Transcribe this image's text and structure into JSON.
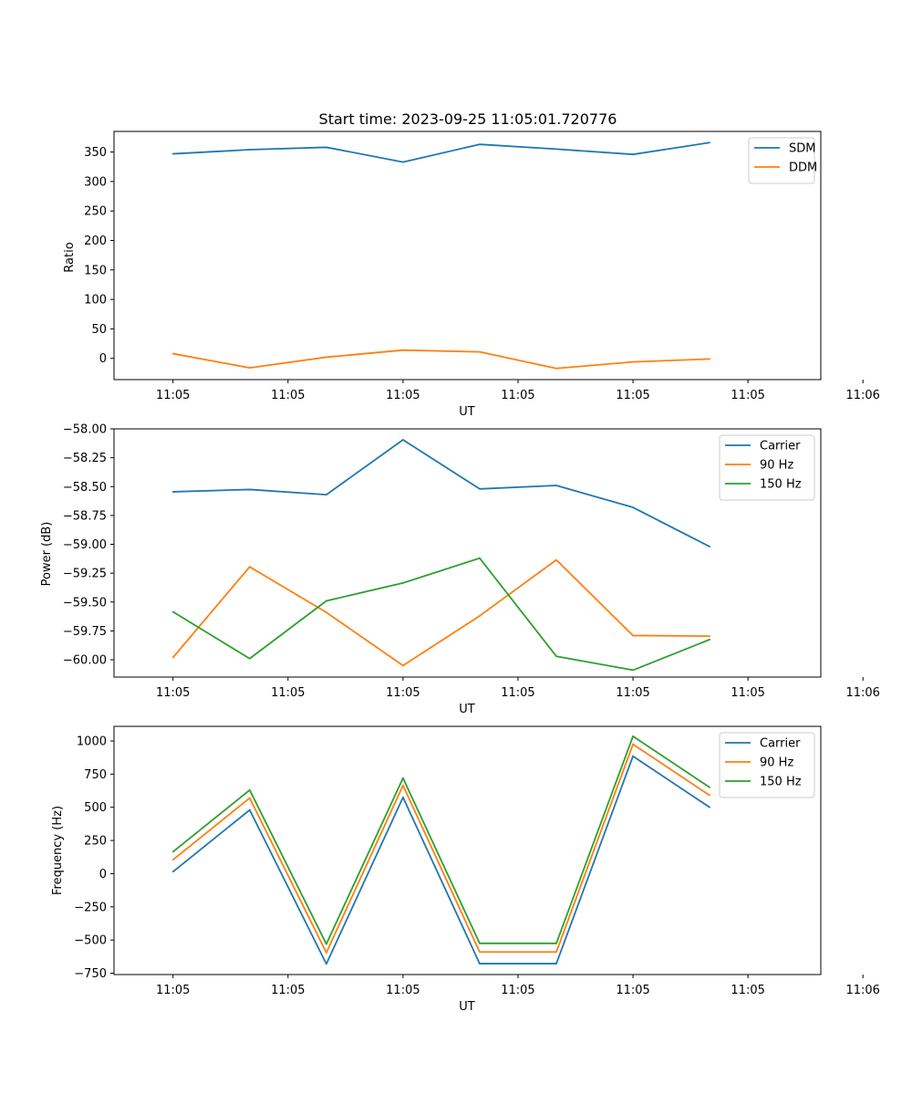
{
  "figure_title": "Start time: 2023-09-25 11:05:01.720776",
  "chart_data": [
    {
      "type": "line",
      "title": "Start time: 2023-09-25 11:05:01.720776",
      "xlabel": "UT",
      "ylabel": "Ratio",
      "xlim": [
        -0.77,
        8.45
      ],
      "ylim": [
        -36,
        385
      ],
      "x_ticks": [
        {
          "value": 0,
          "label": "11:05"
        },
        {
          "value": 1.5,
          "label": "11:05"
        },
        {
          "value": 3,
          "label": "11:05"
        },
        {
          "value": 4.5,
          "label": "11:05"
        },
        {
          "value": 6,
          "label": "11:05"
        },
        {
          "value": 7.5,
          "label": "11:05"
        },
        {
          "value": 9,
          "label": "11:06"
        }
      ],
      "y_ticks": [
        0,
        50,
        100,
        150,
        200,
        250,
        300,
        350
      ],
      "y_tick_labels": [
        "0",
        "50",
        "100",
        "150",
        "200",
        "250",
        "300",
        "350"
      ],
      "legend_position": "top-right",
      "x": [
        0,
        1,
        2,
        3,
        4,
        5,
        6,
        7
      ],
      "series": [
        {
          "name": "SDM",
          "color": "#1f77b4",
          "values": [
            347,
            354,
            358,
            333,
            363,
            355,
            346,
            366
          ]
        },
        {
          "name": "DDM",
          "color": "#ff7f0e",
          "values": [
            8,
            -16,
            2,
            14,
            11,
            -17,
            -6,
            -1
          ]
        }
      ]
    },
    {
      "type": "line",
      "title": "",
      "xlabel": "UT",
      "ylabel": "Power (dB)",
      "xlim": [
        -0.77,
        8.45
      ],
      "ylim": [
        -60.15,
        -58.0
      ],
      "x_ticks": [
        {
          "value": 0,
          "label": "11:05"
        },
        {
          "value": 1.5,
          "label": "11:05"
        },
        {
          "value": 3,
          "label": "11:05"
        },
        {
          "value": 4.5,
          "label": "11:05"
        },
        {
          "value": 6,
          "label": "11:05"
        },
        {
          "value": 7.5,
          "label": "11:05"
        },
        {
          "value": 9,
          "label": "11:06"
        }
      ],
      "y_ticks": [
        -60.0,
        -59.75,
        -59.5,
        -59.25,
        -59.0,
        -58.75,
        -58.5,
        -58.25,
        -58.0
      ],
      "y_tick_labels": [
        "−60.00",
        "−59.75",
        "−59.50",
        "−59.25",
        "−59.00",
        "−58.75",
        "−58.50",
        "−58.25",
        "−58.00"
      ],
      "legend_position": "top-right",
      "x": [
        0,
        1,
        2,
        3,
        4,
        5,
        6,
        7
      ],
      "series": [
        {
          "name": "Carrier",
          "color": "#1f77b4",
          "values": [
            -58.545,
            -58.525,
            -58.57,
            -58.095,
            -58.52,
            -58.49,
            -58.68,
            -59.02
          ]
        },
        {
          "name": "90 Hz",
          "color": "#ff7f0e",
          "values": [
            -59.98,
            -59.195,
            -59.59,
            -60.05,
            -59.62,
            -59.135,
            -59.79,
            -59.795
          ]
        },
        {
          "name": "150 Hz",
          "color": "#2ca02c",
          "values": [
            -59.585,
            -59.99,
            -59.49,
            -59.335,
            -59.12,
            -59.97,
            -60.09,
            -59.825
          ]
        }
      ]
    },
    {
      "type": "line",
      "title": "",
      "xlabel": "UT",
      "ylabel": "Frequency (Hz)",
      "xlim": [
        -0.77,
        8.45
      ],
      "ylim": [
        -760,
        1110
      ],
      "x_ticks": [
        {
          "value": 0,
          "label": "11:05"
        },
        {
          "value": 1.5,
          "label": "11:05"
        },
        {
          "value": 3,
          "label": "11:05"
        },
        {
          "value": 4.5,
          "label": "11:05"
        },
        {
          "value": 6,
          "label": "11:05"
        },
        {
          "value": 7.5,
          "label": "11:05"
        },
        {
          "value": 9,
          "label": "11:06"
        }
      ],
      "y_ticks": [
        -750,
        -500,
        -250,
        0,
        250,
        500,
        750,
        1000
      ],
      "y_tick_labels": [
        "−750",
        "−500",
        "−250",
        "0",
        "250",
        "500",
        "750",
        "1000"
      ],
      "legend_position": "top-right",
      "x": [
        0,
        1,
        2,
        3,
        4,
        5,
        6,
        7
      ],
      "series": [
        {
          "name": "Carrier",
          "color": "#1f77b4",
          "values": [
            15,
            480,
            -680,
            575,
            -678,
            -678,
            885,
            500
          ]
        },
        {
          "name": "90 Hz",
          "color": "#ff7f0e",
          "values": [
            105,
            570,
            -595,
            665,
            -590,
            -590,
            975,
            590
          ]
        },
        {
          "name": "150 Hz",
          "color": "#2ca02c",
          "values": [
            165,
            630,
            -530,
            720,
            -525,
            -525,
            1035,
            650
          ]
        }
      ]
    }
  ]
}
